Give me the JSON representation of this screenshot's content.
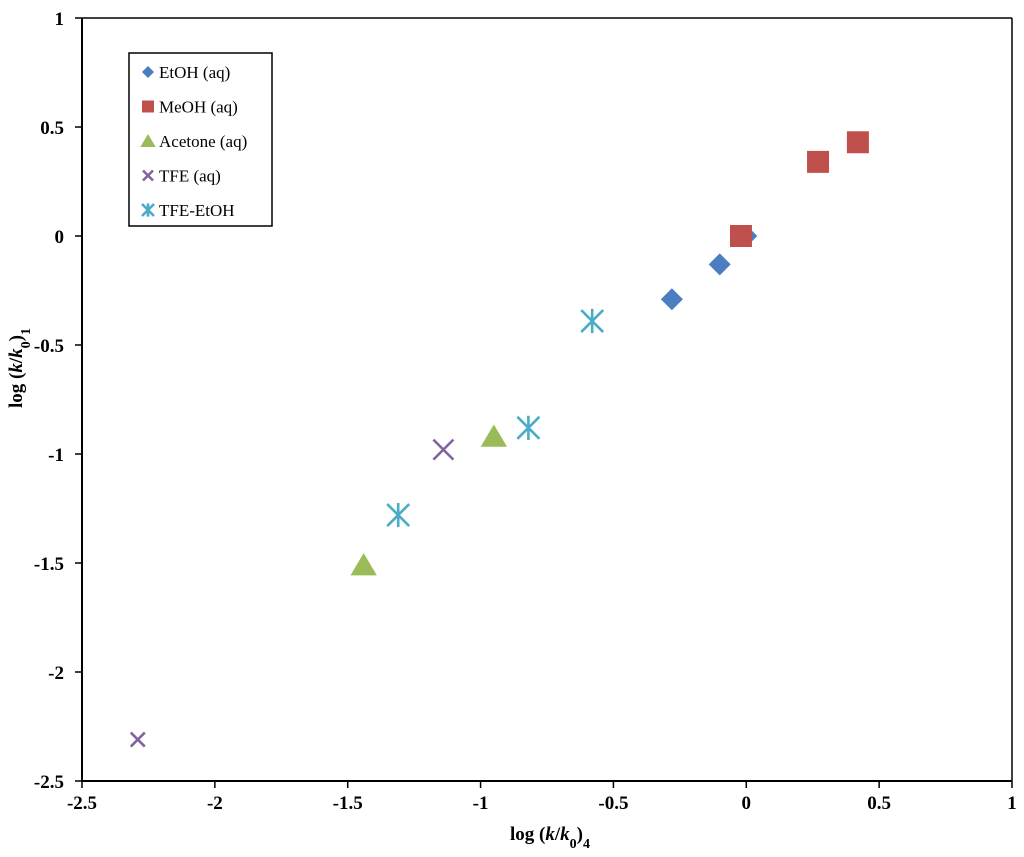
{
  "chart_data": {
    "type": "scatter",
    "title": "",
    "xlabel": "log (k/k0)4",
    "ylabel": "log (k/k0)1",
    "xlim": [
      -2.5,
      1
    ],
    "ylim": [
      -2.5,
      1
    ],
    "x_ticks": [
      "-2.5",
      "-2",
      "-1.5",
      "-1",
      "-0.5",
      "0",
      "0.5",
      "1"
    ],
    "y_ticks": [
      "1",
      "0.5",
      "0",
      "-0.5",
      "-1",
      "-1.5",
      "-2",
      "-2.5"
    ],
    "legend_position": "top-left",
    "grid": false,
    "series": [
      {
        "name": "EtOH (aq)",
        "marker": "diamond",
        "color": "#4A7EC0",
        "points": [
          [
            0.0,
            0.0
          ],
          [
            -0.1,
            -0.13
          ],
          [
            -0.28,
            -0.29
          ]
        ]
      },
      {
        "name": "MeOH (aq)",
        "marker": "square",
        "color": "#C0504D",
        "points": [
          [
            -0.02,
            0.0
          ],
          [
            0.27,
            0.34
          ],
          [
            0.42,
            0.43
          ]
        ]
      },
      {
        "name": "Acetone (aq)",
        "marker": "triangle",
        "color": "#9BBB59",
        "points": [
          [
            -0.95,
            -0.92
          ],
          [
            -1.44,
            -1.51
          ]
        ]
      },
      {
        "name": "TFE (aq)",
        "marker": "x",
        "color": "#8064A2",
        "points": [
          [
            -1.14,
            -0.98
          ],
          [
            -2.29,
            -2.31
          ]
        ]
      },
      {
        "name": "TFE-EtOH",
        "marker": "star",
        "color": "#4BACC6",
        "points": [
          [
            -0.58,
            -0.39
          ],
          [
            -0.82,
            -0.88
          ],
          [
            -1.31,
            -1.28
          ]
        ]
      }
    ]
  }
}
